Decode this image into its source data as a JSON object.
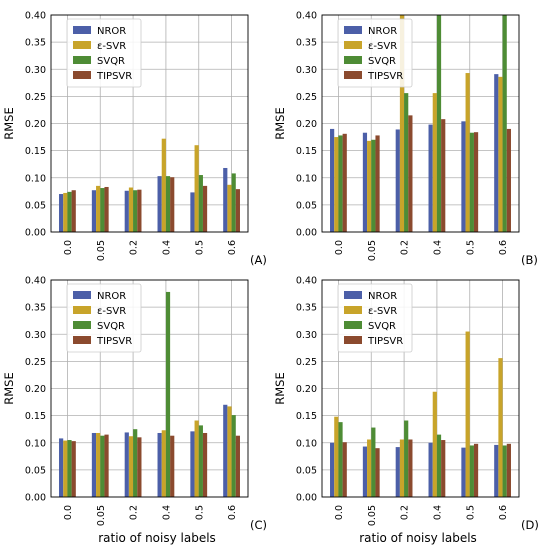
{
  "figure": {
    "x_axis_title": "ratio of noisy labels"
  },
  "chart_data": [
    {
      "type": "bar",
      "panel_label": "(A)",
      "categories": [
        "0.0",
        "0.05",
        "0.2",
        "0.4",
        "0.5",
        "0.6"
      ],
      "ylabel": "RMSE",
      "xlabel": "",
      "ylim": [
        0,
        0.4
      ],
      "yticks": [
        "0.00",
        "0.05",
        "0.10",
        "0.15",
        "0.20",
        "0.25",
        "0.30",
        "0.35",
        "0.40"
      ],
      "grid": true,
      "legend": "top-left",
      "series": [
        {
          "name": "NROR",
          "color": "#4c5fa8",
          "values": [
            0.07,
            0.077,
            0.076,
            0.103,
            0.073,
            0.118
          ]
        },
        {
          "name": "ε-SVR",
          "color": "#c8a42a",
          "values": [
            0.072,
            0.085,
            0.082,
            0.172,
            0.16,
            0.087
          ]
        },
        {
          "name": "SVQR",
          "color": "#4e8c35",
          "values": [
            0.074,
            0.081,
            0.077,
            0.103,
            0.105,
            0.108
          ]
        },
        {
          "name": "TIPSVR",
          "color": "#8b4a2e",
          "values": [
            0.077,
            0.083,
            0.078,
            0.101,
            0.085,
            0.079
          ]
        }
      ]
    },
    {
      "type": "bar",
      "panel_label": "(B)",
      "categories": [
        "0.0",
        "0.05",
        "0.2",
        "0.4",
        "0.5",
        "0.6"
      ],
      "ylabel": "RMSE",
      "xlabel": "",
      "ylim": [
        0,
        0.4
      ],
      "yticks": [
        "0.00",
        "0.05",
        "0.10",
        "0.15",
        "0.20",
        "0.25",
        "0.30",
        "0.35",
        "0.40"
      ],
      "grid": true,
      "legend": "top-left",
      "series": [
        {
          "name": "NROR",
          "color": "#4c5fa8",
          "values": [
            0.19,
            0.183,
            0.189,
            0.198,
            0.204,
            0.291
          ]
        },
        {
          "name": "ε-SVR",
          "color": "#c8a42a",
          "values": [
            0.175,
            0.168,
            0.4,
            0.256,
            0.293,
            0.286
          ]
        },
        {
          "name": "SVQR",
          "color": "#4e8c35",
          "values": [
            0.178,
            0.17,
            0.256,
            0.4,
            0.183,
            0.4
          ]
        },
        {
          "name": "TIPSVR",
          "color": "#8b4a2e",
          "values": [
            0.181,
            0.178,
            0.215,
            0.208,
            0.184,
            0.19
          ]
        }
      ]
    },
    {
      "type": "bar",
      "panel_label": "(C)",
      "categories": [
        "0.0",
        "0.05",
        "0.2",
        "0.4",
        "0.5",
        "0.6"
      ],
      "ylabel": "RMSE",
      "xlabel": "ratio of noisy labels",
      "ylim": [
        0,
        0.4
      ],
      "yticks": [
        "0.00",
        "0.05",
        "0.10",
        "0.15",
        "0.20",
        "0.25",
        "0.30",
        "0.35",
        "0.40"
      ],
      "grid": true,
      "legend": "top-left",
      "series": [
        {
          "name": "NROR",
          "color": "#4c5fa8",
          "values": [
            0.108,
            0.118,
            0.119,
            0.118,
            0.121,
            0.17
          ]
        },
        {
          "name": "ε-SVR",
          "color": "#c8a42a",
          "values": [
            0.104,
            0.118,
            0.112,
            0.123,
            0.141,
            0.167
          ]
        },
        {
          "name": "SVQR",
          "color": "#4e8c35",
          "values": [
            0.105,
            0.113,
            0.125,
            0.378,
            0.132,
            0.151
          ]
        },
        {
          "name": "TIPSVR",
          "color": "#8b4a2e",
          "values": [
            0.103,
            0.115,
            0.11,
            0.113,
            0.118,
            0.113
          ]
        }
      ]
    },
    {
      "type": "bar",
      "panel_label": "(D)",
      "categories": [
        "0.0",
        "0.05",
        "0.2",
        "0.4",
        "0.5",
        "0.6"
      ],
      "ylabel": "RMSE",
      "xlabel": "ratio of noisy labels",
      "ylim": [
        0,
        0.4
      ],
      "yticks": [
        "0.00",
        "0.05",
        "0.10",
        "0.15",
        "0.20",
        "0.25",
        "0.30",
        "0.35",
        "0.40"
      ],
      "grid": true,
      "legend": "top-right",
      "series": [
        {
          "name": "NROR",
          "color": "#4c5fa8",
          "values": [
            0.1,
            0.093,
            0.092,
            0.1,
            0.091,
            0.096
          ]
        },
        {
          "name": "ε-SVR",
          "color": "#c8a42a",
          "values": [
            0.148,
            0.106,
            0.106,
            0.194,
            0.305,
            0.256
          ]
        },
        {
          "name": "SVQR",
          "color": "#4e8c35",
          "values": [
            0.138,
            0.128,
            0.141,
            0.115,
            0.095,
            0.095
          ]
        },
        {
          "name": "TIPSVR",
          "color": "#8b4a2e",
          "values": [
            0.101,
            0.09,
            0.106,
            0.105,
            0.098,
            0.098
          ]
        }
      ]
    }
  ]
}
